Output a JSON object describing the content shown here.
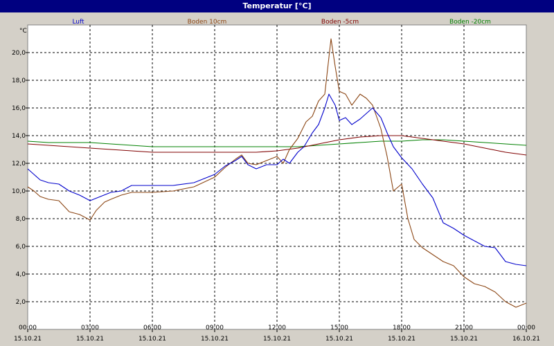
{
  "window": {
    "title": "Temperatur [°C]"
  },
  "chart_data": {
    "type": "line",
    "title": "Temperatur [°C]",
    "ylabel": "°C",
    "xlabel": "",
    "ylim": [
      0,
      22
    ],
    "xlim": [
      0,
      24
    ],
    "grid": true,
    "legend_position": "top",
    "y_ticks": [
      {
        "value": 2,
        "label": "2,0"
      },
      {
        "value": 4,
        "label": "4,0"
      },
      {
        "value": 6,
        "label": "6,0"
      },
      {
        "value": 8,
        "label": "8,0"
      },
      {
        "value": 10,
        "label": "10,0"
      },
      {
        "value": 12,
        "label": "12,0"
      },
      {
        "value": 14,
        "label": "14,0"
      },
      {
        "value": 16,
        "label": "16,0"
      },
      {
        "value": 18,
        "label": "18,0"
      },
      {
        "value": 20,
        "label": "20,0"
      }
    ],
    "x_ticks": [
      {
        "value": 0,
        "time": "00:00",
        "date": "15.10.21"
      },
      {
        "value": 3,
        "time": "03:00",
        "date": "15.10.21"
      },
      {
        "value": 6,
        "time": "06:00",
        "date": "15.10.21"
      },
      {
        "value": 9,
        "time": "09:00",
        "date": "15.10.21"
      },
      {
        "value": 12,
        "time": "12:00",
        "date": "15.10.21"
      },
      {
        "value": 15,
        "time": "15:00",
        "date": "15.10.21"
      },
      {
        "value": 18,
        "time": "18:00",
        "date": "15.10.21"
      },
      {
        "value": 21,
        "time": "21:00",
        "date": "15.10.21"
      },
      {
        "value": 24,
        "time": "00:00",
        "date": "16.10.21"
      }
    ],
    "series": [
      {
        "name": "Luft",
        "color": "#0000cc",
        "points": [
          [
            0,
            11.6
          ],
          [
            0.3,
            11.2
          ],
          [
            0.6,
            10.8
          ],
          [
            1,
            10.6
          ],
          [
            1.5,
            10.5
          ],
          [
            2,
            10.0
          ],
          [
            2.5,
            9.7
          ],
          [
            3,
            9.3
          ],
          [
            3.5,
            9.6
          ],
          [
            4,
            9.9
          ],
          [
            4.5,
            10.0
          ],
          [
            5,
            10.4
          ],
          [
            6,
            10.4
          ],
          [
            7,
            10.4
          ],
          [
            8,
            10.6
          ],
          [
            9,
            11.2
          ],
          [
            9.5,
            11.8
          ],
          [
            10,
            12.2
          ],
          [
            10.3,
            12.5
          ],
          [
            10.6,
            11.9
          ],
          [
            11,
            11.6
          ],
          [
            11.5,
            11.9
          ],
          [
            12,
            11.9
          ],
          [
            12.3,
            12.3
          ],
          [
            12.6,
            12.0
          ],
          [
            13,
            12.8
          ],
          [
            13.3,
            13.2
          ],
          [
            13.7,
            14.2
          ],
          [
            14,
            14.8
          ],
          [
            14.3,
            16.0
          ],
          [
            14.5,
            17.0
          ],
          [
            14.8,
            16.2
          ],
          [
            15,
            15.1
          ],
          [
            15.3,
            15.3
          ],
          [
            15.6,
            14.8
          ],
          [
            16,
            15.2
          ],
          [
            16.3,
            15.6
          ],
          [
            16.6,
            16.0
          ],
          [
            17,
            15.3
          ],
          [
            17.3,
            14.2
          ],
          [
            17.6,
            13.2
          ],
          [
            18,
            12.4
          ],
          [
            18.5,
            11.6
          ],
          [
            19,
            10.5
          ],
          [
            19.5,
            9.5
          ],
          [
            20,
            7.7
          ],
          [
            20.5,
            7.3
          ],
          [
            21,
            6.8
          ],
          [
            21.5,
            6.4
          ],
          [
            22,
            6.0
          ],
          [
            22.5,
            5.9
          ],
          [
            23,
            4.9
          ],
          [
            23.5,
            4.7
          ],
          [
            24,
            4.6
          ]
        ]
      },
      {
        "name": "Boden 10cm",
        "color": "#8b4513",
        "points": [
          [
            0,
            10.3
          ],
          [
            0.3,
            10.0
          ],
          [
            0.6,
            9.6
          ],
          [
            1,
            9.4
          ],
          [
            1.5,
            9.3
          ],
          [
            2,
            8.5
          ],
          [
            2.5,
            8.3
          ],
          [
            3,
            7.9
          ],
          [
            3.3,
            8.6
          ],
          [
            3.7,
            9.2
          ],
          [
            4,
            9.4
          ],
          [
            4.5,
            9.7
          ],
          [
            5,
            9.9
          ],
          [
            6,
            9.9
          ],
          [
            7,
            10.0
          ],
          [
            8,
            10.3
          ],
          [
            9,
            11.0
          ],
          [
            9.5,
            11.7
          ],
          [
            10,
            12.3
          ],
          [
            10.3,
            12.6
          ],
          [
            10.6,
            12.0
          ],
          [
            11,
            11.9
          ],
          [
            11.5,
            12.2
          ],
          [
            12,
            12.5
          ],
          [
            12.3,
            12.0
          ],
          [
            12.6,
            13.0
          ],
          [
            13,
            13.8
          ],
          [
            13.4,
            15.0
          ],
          [
            13.7,
            15.4
          ],
          [
            14,
            16.5
          ],
          [
            14.3,
            17.0
          ],
          [
            14.6,
            21.0
          ],
          [
            14.8,
            19.0
          ],
          [
            15,
            17.2
          ],
          [
            15.3,
            17.0
          ],
          [
            15.6,
            16.2
          ],
          [
            16,
            17.0
          ],
          [
            16.3,
            16.7
          ],
          [
            16.6,
            16.2
          ],
          [
            17,
            14.5
          ],
          [
            17.3,
            12.5
          ],
          [
            17.6,
            10.0
          ],
          [
            18,
            10.5
          ],
          [
            18.3,
            8.0
          ],
          [
            18.6,
            6.5
          ],
          [
            19,
            5.9
          ],
          [
            19.5,
            5.4
          ],
          [
            20,
            4.9
          ],
          [
            20.5,
            4.6
          ],
          [
            21,
            3.8
          ],
          [
            21.5,
            3.3
          ],
          [
            22,
            3.1
          ],
          [
            22.5,
            2.7
          ],
          [
            23,
            2.0
          ],
          [
            23.5,
            1.6
          ],
          [
            24,
            1.9
          ]
        ]
      },
      {
        "name": "Boden -5cm",
        "color": "#800000",
        "points": [
          [
            0,
            13.4
          ],
          [
            1,
            13.3
          ],
          [
            2,
            13.2
          ],
          [
            3,
            13.1
          ],
          [
            4,
            13.0
          ],
          [
            5,
            12.9
          ],
          [
            6,
            12.8
          ],
          [
            7,
            12.8
          ],
          [
            8,
            12.8
          ],
          [
            9,
            12.8
          ],
          [
            10,
            12.8
          ],
          [
            11,
            12.8
          ],
          [
            12,
            12.9
          ],
          [
            13,
            13.1
          ],
          [
            14,
            13.4
          ],
          [
            15,
            13.7
          ],
          [
            16,
            13.9
          ],
          [
            17,
            14.0
          ],
          [
            18,
            14.0
          ],
          [
            19,
            13.8
          ],
          [
            20,
            13.6
          ],
          [
            21,
            13.4
          ],
          [
            22,
            13.1
          ],
          [
            23,
            12.8
          ],
          [
            24,
            12.6
          ]
        ]
      },
      {
        "name": "Boden -20cm",
        "color": "#008000",
        "points": [
          [
            0,
            13.6
          ],
          [
            1,
            13.5
          ],
          [
            2,
            13.5
          ],
          [
            3,
            13.5
          ],
          [
            4,
            13.4
          ],
          [
            5,
            13.3
          ],
          [
            6,
            13.2
          ],
          [
            7,
            13.2
          ],
          [
            8,
            13.2
          ],
          [
            9,
            13.2
          ],
          [
            10,
            13.2
          ],
          [
            11,
            13.2
          ],
          [
            12,
            13.2
          ],
          [
            13,
            13.2
          ],
          [
            14,
            13.3
          ],
          [
            15,
            13.4
          ],
          [
            16,
            13.5
          ],
          [
            17,
            13.6
          ],
          [
            18,
            13.6
          ],
          [
            19,
            13.7
          ],
          [
            20,
            13.7
          ],
          [
            21,
            13.6
          ],
          [
            22,
            13.5
          ],
          [
            23,
            13.4
          ],
          [
            24,
            13.3
          ]
        ]
      }
    ]
  }
}
